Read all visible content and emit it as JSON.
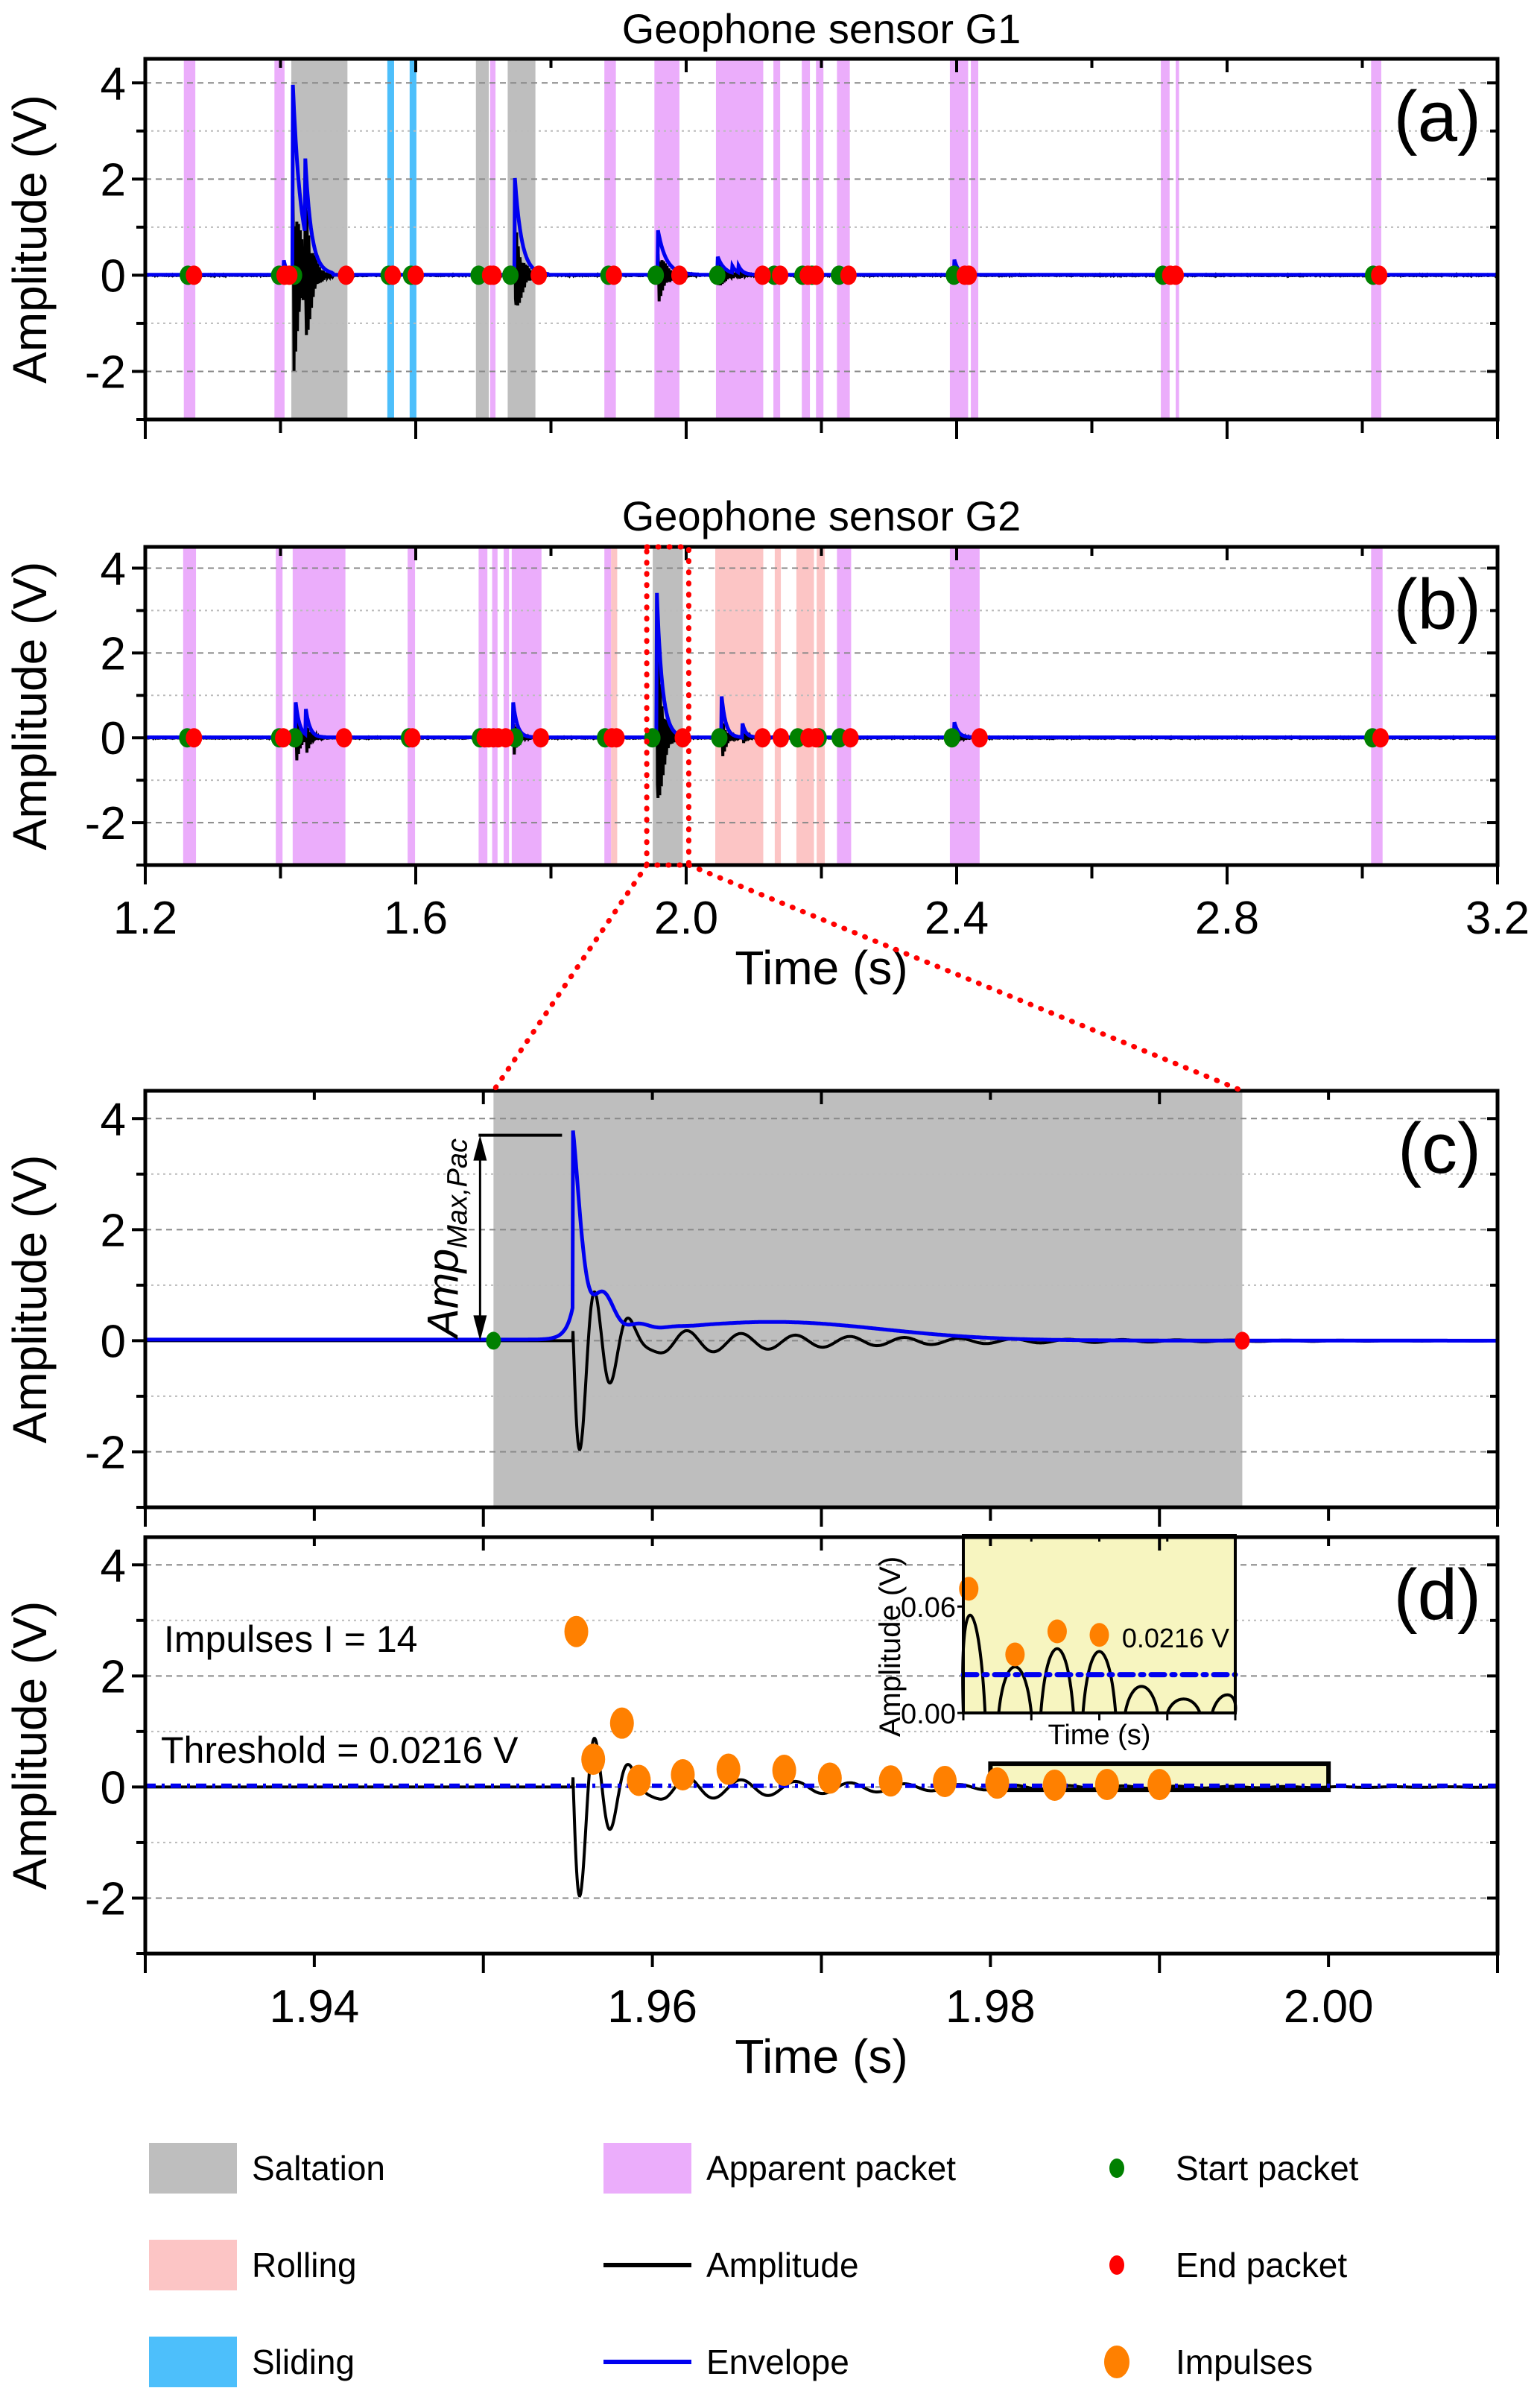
{
  "colors": {
    "saltation": "#bebebe",
    "rolling": "#fcc5c5",
    "sliding": "#4dbffb",
    "apparent": "#ebadfb",
    "amplitude": "#000000",
    "envelope": "#0000f0",
    "start": "#008000",
    "end": "#ff0000",
    "impulse": "#ff8000",
    "inset_bg": "#f7f5c0",
    "zoom_box": "#ff0000",
    "grid": "#999999"
  },
  "chart_data": [
    {
      "id": "a",
      "type": "line",
      "title": "Geophone sensor G1",
      "panel_label": "(a)",
      "xlabel": "",
      "ylabel": "Amplitude (V)",
      "xlim": [
        1.2,
        3.2
      ],
      "ylim": [
        -3,
        4.5
      ],
      "xticks": [
        1.2,
        1.4,
        1.6,
        1.8,
        2.0,
        2.2,
        2.4,
        2.6,
        2.8,
        3.0,
        3.2
      ],
      "xtick_labels": [],
      "yticks": [
        -2,
        0,
        2,
        4
      ],
      "ytick_labels": [
        "-2",
        "0",
        "2",
        "4"
      ],
      "grid": true,
      "bands": [
        {
          "type": "apparent",
          "x0": 1.257,
          "x1": 1.274
        },
        {
          "type": "apparent",
          "x0": 1.391,
          "x1": 1.406
        },
        {
          "type": "saltation",
          "x0": 1.416,
          "x1": 1.499
        },
        {
          "type": "sliding",
          "x0": 1.558,
          "x1": 1.568
        },
        {
          "type": "sliding",
          "x0": 1.591,
          "x1": 1.601
        },
        {
          "type": "saltation",
          "x0": 1.689,
          "x1": 1.708
        },
        {
          "type": "apparent",
          "x0": 1.71,
          "x1": 1.718
        },
        {
          "type": "saltation",
          "x0": 1.736,
          "x1": 1.777
        },
        {
          "type": "apparent",
          "x0": 1.879,
          "x1": 1.896
        },
        {
          "type": "apparent",
          "x0": 1.953,
          "x1": 1.99
        },
        {
          "type": "apparent",
          "x0": 2.044,
          "x1": 2.114
        },
        {
          "type": "apparent",
          "x0": 2.129,
          "x1": 2.139
        },
        {
          "type": "apparent",
          "x0": 2.171,
          "x1": 2.183
        },
        {
          "type": "apparent",
          "x0": 2.192,
          "x1": 2.203
        },
        {
          "type": "apparent",
          "x0": 2.223,
          "x1": 2.242
        },
        {
          "type": "apparent",
          "x0": 2.39,
          "x1": 2.417
        },
        {
          "type": "apparent",
          "x0": 2.421,
          "x1": 2.432
        },
        {
          "type": "apparent",
          "x0": 2.702,
          "x1": 2.715
        },
        {
          "type": "apparent",
          "x0": 2.724,
          "x1": 2.729
        },
        {
          "type": "apparent",
          "x0": 3.013,
          "x1": 3.028
        }
      ],
      "events": [
        {
          "t": 1.418,
          "env_peak": 4.05,
          "amp_min": -2.35,
          "decay": 0.012
        },
        {
          "t": 1.436,
          "env_peak": 1.7,
          "amp_min": -1.75,
          "decay": 0.008
        },
        {
          "t": 1.405,
          "env_peak": 0.3,
          "amp_min": -0.2,
          "decay": 0.004
        },
        {
          "t": 1.746,
          "env_peak": 2.15,
          "amp_min": -1.25,
          "decay": 0.01
        },
        {
          "t": 1.958,
          "env_peak": 0.95,
          "amp_min": -0.65,
          "decay": 0.012
        },
        {
          "t": 2.046,
          "env_peak": 0.4,
          "amp_min": -0.4,
          "decay": 0.01
        },
        {
          "t": 2.068,
          "env_peak": 0.15,
          "amp_min": -0.12,
          "decay": 0.006
        },
        {
          "t": 2.077,
          "env_peak": 0.15,
          "amp_min": -0.12,
          "decay": 0.006
        },
        {
          "t": 2.396,
          "env_peak": 0.35,
          "amp_min": -0.35,
          "decay": 0.006
        }
      ],
      "start_packets": [
        1.263,
        1.398,
        1.42,
        1.56,
        1.593,
        1.693,
        1.74,
        1.885,
        1.955,
        2.046,
        2.13,
        2.172,
        2.186,
        2.226,
        2.396,
        2.705,
        3.016
      ],
      "end_packets": [
        1.272,
        1.406,
        1.413,
        1.497,
        1.566,
        1.6,
        1.71,
        1.715,
        1.782,
        1.893,
        1.99,
        2.113,
        2.139,
        2.18,
        2.192,
        2.24,
        2.412,
        2.418,
        2.716,
        2.724,
        3.025
      ]
    },
    {
      "id": "b",
      "type": "line",
      "title": "Geophone sensor G2",
      "panel_label": "(b)",
      "xlabel": "Time (s)",
      "ylabel": "Amplitude (V)",
      "xlim": [
        1.2,
        3.2
      ],
      "ylim": [
        -3,
        4.5
      ],
      "xticks": [
        1.2,
        1.4,
        1.6,
        1.8,
        2.0,
        2.2,
        2.4,
        2.6,
        2.8,
        3.0,
        3.2
      ],
      "xtick_labels": [
        "1.2",
        "",
        "1.6",
        "",
        "2.0",
        "",
        "2.4",
        "",
        "2.8",
        "",
        "3.2"
      ],
      "yticks": [
        -2,
        0,
        2,
        4
      ],
      "ytick_labels": [
        "-2",
        "0",
        "2",
        "4"
      ],
      "grid": true,
      "bands": [
        {
          "type": "apparent",
          "x0": 1.256,
          "x1": 1.275
        },
        {
          "type": "apparent",
          "x0": 1.393,
          "x1": 1.403
        },
        {
          "type": "apparent",
          "x0": 1.418,
          "x1": 1.496
        },
        {
          "type": "apparent",
          "x0": 1.588,
          "x1": 1.599
        },
        {
          "type": "apparent",
          "x0": 1.693,
          "x1": 1.706
        },
        {
          "type": "apparent",
          "x0": 1.713,
          "x1": 1.721
        },
        {
          "type": "apparent",
          "x0": 1.73,
          "x1": 1.738
        },
        {
          "type": "apparent",
          "x0": 1.742,
          "x1": 1.786
        },
        {
          "type": "apparent",
          "x0": 1.879,
          "x1": 1.889
        },
        {
          "type": "rolling",
          "x0": 1.889,
          "x1": 1.898
        },
        {
          "type": "saltation",
          "x0": 1.9505,
          "x1": 1.995
        },
        {
          "type": "rolling",
          "x0": 2.043,
          "x1": 2.114
        },
        {
          "type": "rolling",
          "x0": 2.131,
          "x1": 2.14
        },
        {
          "type": "rolling",
          "x0": 2.163,
          "x1": 2.189
        },
        {
          "type": "rolling",
          "x0": 2.193,
          "x1": 2.205
        },
        {
          "type": "apparent",
          "x0": 2.223,
          "x1": 2.244
        },
        {
          "type": "apparent",
          "x0": 2.39,
          "x1": 2.434
        },
        {
          "type": "apparent",
          "x0": 3.013,
          "x1": 3.03
        }
      ],
      "events": [
        {
          "t": 1.422,
          "env_peak": 0.9,
          "amp_min": -0.85,
          "decay": 0.006
        },
        {
          "t": 1.437,
          "env_peak": 0.65,
          "amp_min": -0.55,
          "decay": 0.006
        },
        {
          "t": 1.744,
          "env_peak": 0.85,
          "amp_min": -0.55,
          "decay": 0.006
        },
        {
          "t": 1.956,
          "env_peak": 3.7,
          "amp_min": -3.0,
          "decay": 0.008
        },
        {
          "t": 2.052,
          "env_peak": 1.05,
          "amp_min": -0.7,
          "decay": 0.006
        },
        {
          "t": 2.083,
          "env_peak": 0.35,
          "amp_min": -0.2,
          "decay": 0.005
        },
        {
          "t": 2.396,
          "env_peak": 0.4,
          "amp_min": -0.3,
          "decay": 0.006
        }
      ],
      "start_packets": [
        1.262,
        1.398,
        1.421,
        1.59,
        1.695,
        1.747,
        1.88,
        1.95,
        2.049,
        2.165,
        2.196,
        2.227,
        2.393,
        3.015
      ],
      "end_packets": [
        1.272,
        1.404,
        1.494,
        1.595,
        1.702,
        1.708,
        1.715,
        1.722,
        1.733,
        1.785,
        1.89,
        1.897,
        1.995,
        2.113,
        2.14,
        2.181,
        2.192,
        2.243,
        2.434,
        3.027
      ],
      "zoom_box": {
        "x0": 1.9505,
        "x1": 1.995
      }
    },
    {
      "id": "c",
      "type": "line",
      "title": "",
      "panel_label": "(c)",
      "xlabel": "",
      "ylabel": "Amplitude (V)",
      "xlim": [
        1.93,
        2.01
      ],
      "ylim": [
        -3,
        4.5
      ],
      "xticks": [
        1.93,
        1.94,
        1.95,
        1.96,
        1.97,
        1.98,
        1.99,
        2.0,
        2.01
      ],
      "xtick_labels": [],
      "yticks": [
        -2,
        0,
        2,
        4
      ],
      "ytick_labels": [
        "-2",
        "0",
        "2",
        "4"
      ],
      "grid": true,
      "bands": [
        {
          "type": "saltation",
          "x0": 1.9506,
          "x1": 1.9949
        }
      ],
      "start_packets": [
        1.9506
      ],
      "end_packets": [
        1.9949
      ],
      "peak_envelope": 3.7,
      "annotation": {
        "text": "Amp",
        "subscript": "Max,Pac",
        "from": 0,
        "to": 3.7
      }
    },
    {
      "id": "d",
      "type": "line",
      "title": "",
      "panel_label": "(d)",
      "xlabel": "Time (s)",
      "ylabel": "Amplitude (V)",
      "xlim": [
        1.93,
        2.01
      ],
      "ylim": [
        -3,
        4.5
      ],
      "xticks": [
        1.93,
        1.94,
        1.95,
        1.96,
        1.97,
        1.98,
        1.99,
        2.0,
        2.01
      ],
      "xtick_labels": [
        "",
        "1.94",
        "",
        "1.96",
        "",
        "1.98",
        "",
        "2.00",
        ""
      ],
      "yticks": [
        -2,
        0,
        2,
        4
      ],
      "ytick_labels": [
        "-2",
        "0",
        "2",
        "4"
      ],
      "grid": true,
      "threshold": 0.0216,
      "annotations": [
        "Impulses I = 14",
        "Threshold = 0.0216 V"
      ],
      "impulses": [
        {
          "t": 1.9555,
          "v": 2.8
        },
        {
          "t": 1.9565,
          "v": 0.5
        },
        {
          "t": 1.9582,
          "v": 1.15
        },
        {
          "t": 1.9592,
          "v": 0.12
        },
        {
          "t": 1.9618,
          "v": 0.22
        },
        {
          "t": 1.9645,
          "v": 0.32
        },
        {
          "t": 1.9678,
          "v": 0.3
        },
        {
          "t": 1.9705,
          "v": 0.16
        },
        {
          "t": 1.9741,
          "v": 0.11
        },
        {
          "t": 1.9773,
          "v": 0.1
        },
        {
          "t": 1.9804,
          "v": 0.07
        },
        {
          "t": 1.9838,
          "v": 0.033
        },
        {
          "t": 1.9869,
          "v": 0.046
        },
        {
          "t": 1.99,
          "v": 0.044
        }
      ],
      "highlight_box": {
        "x0": 1.98,
        "x1": 2.0,
        "y0": -0.05,
        "y1": 0.42
      },
      "inset": {
        "xlabel": "Time (s)",
        "ylabel": "Amplitude (V)",
        "xlim": [
          1.98,
          2.0
        ],
        "ylim": [
          0,
          0.1
        ],
        "yticks": [
          0.0,
          0.06
        ],
        "ytick_labels": [
          "0.00",
          "0.06"
        ],
        "threshold_label": "0.0216 V",
        "peaks": [
          {
            "t": 1.9804,
            "v": 0.07,
            "impulse": true
          },
          {
            "t": 1.9838,
            "v": 0.033,
            "impulse": true
          },
          {
            "t": 1.9869,
            "v": 0.046,
            "impulse": true
          },
          {
            "t": 1.99,
            "v": 0.044,
            "impulse": true
          },
          {
            "t": 1.9931,
            "v": 0.019,
            "impulse": false
          },
          {
            "t": 1.9962,
            "v": 0.01,
            "impulse": false
          },
          {
            "t": 1.9995,
            "v": 0.013,
            "impulse": false
          }
        ]
      }
    }
  ],
  "legend": [
    {
      "key": "saltation",
      "label": "Saltation",
      "kind": "box"
    },
    {
      "key": "apparent",
      "label": "Apparent packet",
      "kind": "box"
    },
    {
      "key": "start",
      "label": "Start packet",
      "kind": "dot"
    },
    {
      "key": "rolling",
      "label": "Rolling",
      "kind": "box"
    },
    {
      "key": "amplitude",
      "label": "Amplitude",
      "kind": "line"
    },
    {
      "key": "end",
      "label": "End packet",
      "kind": "dot"
    },
    {
      "key": "sliding",
      "label": "Sliding",
      "kind": "box"
    },
    {
      "key": "envelope",
      "label": "Envelope",
      "kind": "line"
    },
    {
      "key": "impulse",
      "label": "Impulses",
      "kind": "bigdot"
    }
  ]
}
